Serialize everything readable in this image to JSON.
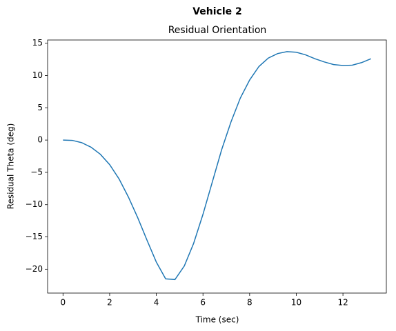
{
  "chart_data": {
    "type": "line",
    "suptitle": "Vehicle 2",
    "title": "Residual Orientation",
    "x_label": "Time (sec)",
    "y_label": "Residual Theta (deg)",
    "x": [
      0,
      0.4,
      0.8,
      1.2,
      1.6,
      2.0,
      2.4,
      2.8,
      3.2,
      3.6,
      4.0,
      4.4,
      4.8,
      5.2,
      5.6,
      6.0,
      6.4,
      6.8,
      7.2,
      7.6,
      8.0,
      8.4,
      8.8,
      9.2,
      9.6,
      10.0,
      10.4,
      10.8,
      11.2,
      11.6,
      12.0,
      12.4,
      12.8,
      13.2
    ],
    "series": [
      {
        "color": "#1f77b4",
        "values": [
          0,
          -0.05,
          -0.4,
          -1.1,
          -2.2,
          -3.8,
          -6.0,
          -8.8,
          -12.0,
          -15.5,
          -18.9,
          -21.5,
          -21.6,
          -19.5,
          -16.0,
          -11.5,
          -6.5,
          -1.5,
          2.8,
          6.5,
          9.3,
          11.4,
          12.7,
          13.4,
          13.7,
          13.6,
          13.2,
          12.6,
          12.1,
          11.7,
          11.55,
          11.6,
          12.0,
          12.6
        ]
      }
    ],
    "xlim": [
      -0.66,
      13.86
    ],
    "ylim": [
      -23.7,
      15.5
    ],
    "xticks": [
      0,
      2,
      4,
      6,
      8,
      10,
      12
    ],
    "yticks": [
      {
        "value": -20,
        "label": "−20"
      },
      {
        "value": -15,
        "label": "−15"
      },
      {
        "value": -10,
        "label": "−10"
      },
      {
        "value": -5,
        "label": "−5"
      },
      0,
      5,
      10,
      15
    ]
  }
}
